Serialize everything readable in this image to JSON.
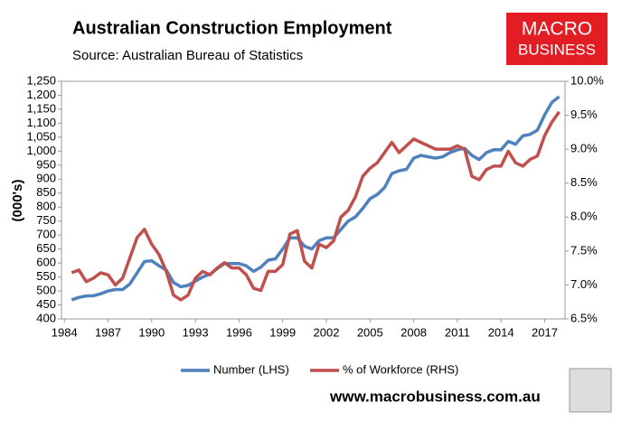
{
  "chart_data": {
    "type": "line",
    "title": "Australian Construction Employment",
    "subtitle": "Source: Australian Bureau of Statistics",
    "y_label": "(000's)",
    "logo": [
      "MACRO",
      "BUSINESS"
    ],
    "footer": "www.macrobusiness.com.au",
    "x": [
      1984.5,
      1985,
      1985.5,
      1986,
      1986.5,
      1987,
      1987.5,
      1988,
      1988.5,
      1989,
      1989.5,
      1990,
      1990.5,
      1991,
      1991.5,
      1992,
      1992.5,
      1993,
      1993.5,
      1994,
      1994.5,
      1995,
      1995.5,
      1996,
      1996.5,
      1997,
      1997.5,
      1998,
      1998.5,
      1999,
      1999.5,
      2000,
      2000.5,
      2001,
      2001.5,
      2002,
      2002.5,
      2003,
      2003.5,
      2004,
      2004.5,
      2005,
      2005.5,
      2006,
      2006.5,
      2007,
      2007.5,
      2008,
      2008.5,
      2009,
      2009.5,
      2010,
      2010.5,
      2011,
      2011.5,
      2012,
      2012.5,
      2013,
      2013.5,
      2014,
      2014.5,
      2015,
      2015.5,
      2016,
      2016.5,
      2017,
      2017.5,
      2018
    ],
    "series": [
      {
        "name": "Number (LHS)",
        "color": "#4f81bd",
        "axis": "y",
        "values": [
          468,
          477,
          482,
          483,
          490,
          500,
          505,
          505,
          525,
          565,
          605,
          608,
          590,
          575,
          530,
          515,
          520,
          535,
          550,
          560,
          580,
          598,
          598,
          598,
          590,
          570,
          585,
          610,
          615,
          650,
          690,
          690,
          660,
          650,
          680,
          690,
          690,
          720,
          750,
          765,
          795,
          830,
          845,
          870,
          920,
          930,
          935,
          975,
          985,
          980,
          975,
          980,
          995,
          1005,
          1010,
          985,
          970,
          995,
          1005,
          1005,
          1035,
          1025,
          1055,
          1060,
          1075,
          1130,
          1175,
          1195
        ]
      },
      {
        "name": "% of Workforce (RHS)",
        "color": "#c0504d",
        "axis": "y2",
        "values": [
          7.18,
          7.22,
          7.05,
          7.1,
          7.18,
          7.15,
          7.0,
          7.1,
          7.4,
          7.7,
          7.82,
          7.6,
          7.45,
          7.2,
          6.85,
          6.78,
          6.85,
          7.1,
          7.2,
          7.15,
          7.25,
          7.33,
          7.25,
          7.25,
          7.15,
          6.95,
          6.92,
          7.2,
          7.2,
          7.3,
          7.75,
          7.8,
          7.35,
          7.25,
          7.6,
          7.55,
          7.65,
          8.0,
          8.1,
          8.3,
          8.6,
          8.72,
          8.8,
          8.95,
          9.1,
          8.95,
          9.05,
          9.15,
          9.1,
          9.05,
          9.0,
          9.0,
          9.0,
          9.05,
          9.0,
          8.6,
          8.55,
          8.7,
          8.75,
          8.75,
          8.97,
          8.8,
          8.75,
          8.85,
          8.9,
          9.2,
          9.4,
          9.55
        ]
      }
    ],
    "xlim": [
      1983.8,
      2018.4
    ],
    "xticks": [
      1984,
      1987,
      1990,
      1993,
      1996,
      1999,
      2002,
      2005,
      2008,
      2011,
      2014,
      2017
    ],
    "ylim": [
      400,
      1250
    ],
    "yticks": [
      400,
      450,
      500,
      550,
      600,
      650,
      700,
      750,
      800,
      850,
      900,
      950,
      {
        "value": 1000,
        "label": "1,000"
      },
      {
        "value": 1050,
        "label": "1,050"
      },
      {
        "value": 1100,
        "label": "1,100"
      },
      {
        "value": 1150,
        "label": "1,150"
      },
      {
        "value": 1200,
        "label": "1,200"
      },
      {
        "value": 1250,
        "label": "1,250"
      }
    ],
    "y2lim": [
      6.5,
      10.0
    ],
    "y2ticks": [
      {
        "value": 6.5,
        "label": "6.5%"
      },
      {
        "value": 7.0,
        "label": "7.0%"
      },
      {
        "value": 7.5,
        "label": "7.5%"
      },
      {
        "value": 8.0,
        "label": "8.0%"
      },
      {
        "value": 8.5,
        "label": "8.5%"
      },
      {
        "value": 9.0,
        "label": "9.0%"
      },
      {
        "value": 9.5,
        "label": "9.5%"
      },
      {
        "value": 10.0,
        "label": "10.0%"
      }
    ],
    "grid": false,
    "legend": "bottom"
  }
}
